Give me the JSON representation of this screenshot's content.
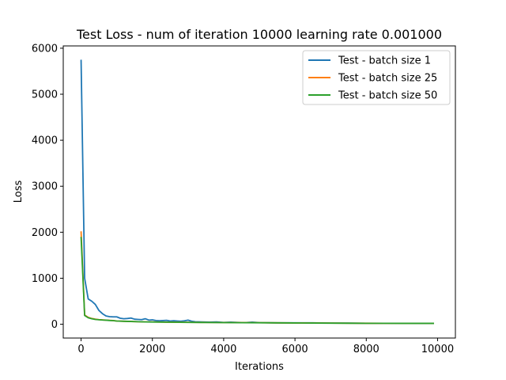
{
  "chart_data": {
    "type": "line",
    "title": "Test Loss -  num of iteration 10000 learning rate 0.001000",
    "xlabel": "Iterations",
    "ylabel": "Loss",
    "xlim": [
      -500,
      10500
    ],
    "ylim": [
      -300,
      6050
    ],
    "xticks": [
      0,
      2000,
      4000,
      6000,
      8000,
      10000
    ],
    "yticks": [
      0,
      1000,
      2000,
      3000,
      4000,
      5000,
      6000
    ],
    "grid": false,
    "legend_position": "top-right",
    "series": [
      {
        "name": "Test - batch size 1",
        "color": "#1f77b4",
        "points": [
          [
            0,
            5750
          ],
          [
            100,
            1000
          ],
          [
            200,
            550
          ],
          [
            300,
            500
          ],
          [
            400,
            430
          ],
          [
            500,
            300
          ],
          [
            600,
            230
          ],
          [
            700,
            180
          ],
          [
            800,
            165
          ],
          [
            900,
            160
          ],
          [
            1000,
            160
          ],
          [
            1100,
            130
          ],
          [
            1200,
            120
          ],
          [
            1300,
            125
          ],
          [
            1400,
            135
          ],
          [
            1500,
            110
          ],
          [
            1600,
            105
          ],
          [
            1700,
            100
          ],
          [
            1800,
            120
          ],
          [
            1900,
            90
          ],
          [
            2000,
            95
          ],
          [
            2100,
            80
          ],
          [
            2200,
            75
          ],
          [
            2300,
            80
          ],
          [
            2400,
            85
          ],
          [
            2500,
            70
          ],
          [
            2600,
            75
          ],
          [
            2700,
            70
          ],
          [
            2800,
            65
          ],
          [
            2900,
            75
          ],
          [
            3000,
            90
          ],
          [
            3100,
            65
          ],
          [
            3200,
            55
          ],
          [
            3400,
            50
          ],
          [
            3600,
            45
          ],
          [
            3800,
            50
          ],
          [
            4000,
            40
          ],
          [
            4200,
            45
          ],
          [
            4400,
            40
          ],
          [
            4600,
            35
          ],
          [
            4800,
            45
          ],
          [
            5000,
            35
          ],
          [
            5500,
            30
          ],
          [
            6000,
            30
          ],
          [
            6500,
            30
          ],
          [
            7000,
            25
          ],
          [
            7500,
            25
          ],
          [
            8000,
            20
          ],
          [
            8500,
            20
          ],
          [
            9000,
            20
          ],
          [
            9500,
            18
          ],
          [
            9900,
            18
          ]
        ]
      },
      {
        "name": "Test - batch size 25",
        "color": "#ff7f0e",
        "points": [
          [
            0,
            2020
          ],
          [
            100,
            200
          ],
          [
            200,
            150
          ],
          [
            300,
            125
          ],
          [
            400,
            110
          ],
          [
            500,
            100
          ],
          [
            600,
            95
          ],
          [
            700,
            90
          ],
          [
            800,
            85
          ],
          [
            900,
            80
          ],
          [
            1000,
            70
          ],
          [
            1200,
            65
          ],
          [
            1400,
            60
          ],
          [
            1600,
            55
          ],
          [
            1800,
            50
          ],
          [
            2000,
            50
          ],
          [
            2500,
            45
          ],
          [
            3000,
            42
          ],
          [
            3500,
            40
          ],
          [
            4000,
            38
          ],
          [
            4500,
            35
          ],
          [
            5000,
            33
          ],
          [
            5500,
            30
          ],
          [
            6000,
            28
          ],
          [
            6500,
            27
          ],
          [
            7000,
            25
          ],
          [
            7500,
            23
          ],
          [
            8000,
            22
          ],
          [
            8500,
            21
          ],
          [
            9000,
            20
          ],
          [
            9500,
            20
          ],
          [
            9900,
            20
          ]
        ]
      },
      {
        "name": "Test - batch size 50",
        "color": "#2ca02c",
        "points": [
          [
            0,
            1900
          ],
          [
            100,
            190
          ],
          [
            200,
            140
          ],
          [
            300,
            120
          ],
          [
            400,
            105
          ],
          [
            500,
            98
          ],
          [
            600,
            92
          ],
          [
            700,
            88
          ],
          [
            800,
            82
          ],
          [
            900,
            78
          ],
          [
            1000,
            70
          ],
          [
            1200,
            65
          ],
          [
            1400,
            60
          ],
          [
            1600,
            55
          ],
          [
            1800,
            50
          ],
          [
            2000,
            48
          ],
          [
            2500,
            44
          ],
          [
            3000,
            40
          ],
          [
            3500,
            38
          ],
          [
            4000,
            36
          ],
          [
            4500,
            34
          ],
          [
            5000,
            32
          ],
          [
            5500,
            30
          ],
          [
            6000,
            28
          ],
          [
            6500,
            26
          ],
          [
            7000,
            24
          ],
          [
            7500,
            22
          ],
          [
            8000,
            21
          ],
          [
            8500,
            20
          ],
          [
            9000,
            19
          ],
          [
            9500,
            19
          ],
          [
            9900,
            19
          ]
        ]
      }
    ]
  }
}
